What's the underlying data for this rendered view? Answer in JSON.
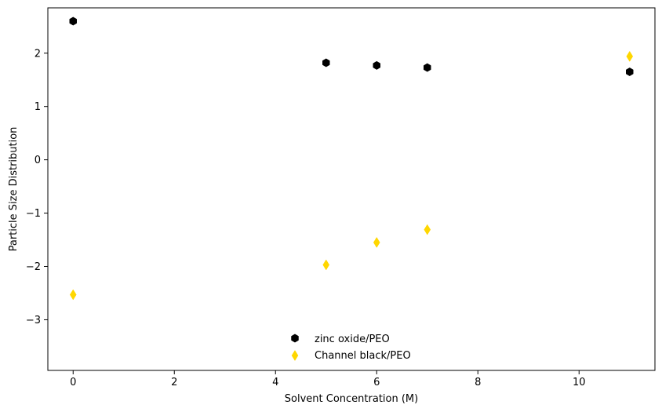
{
  "chart_data": {
    "type": "scatter",
    "title": "",
    "xlabel": "Solvent Concentration (M)",
    "ylabel": "Particle Size Distribution",
    "xlim": [
      -0.5,
      11.5
    ],
    "ylim": [
      -3.95,
      2.85
    ],
    "xticks": [
      0,
      2,
      4,
      6,
      8,
      10
    ],
    "yticks": [
      -3,
      -2,
      -1,
      0,
      1,
      2
    ],
    "grid": false,
    "legend": "lower-center",
    "series": [
      {
        "name": "zinc oxide/PEO",
        "marker": "hexagon",
        "color": "#000000",
        "x": [
          0,
          5,
          6,
          7,
          11
        ],
        "y": [
          2.6,
          1.82,
          1.77,
          1.73,
          1.65
        ]
      },
      {
        "name": "Channel black/PEO",
        "marker": "thin-diamond",
        "color": "#FFD700",
        "x": [
          0,
          5,
          6,
          7,
          11
        ],
        "y": [
          -2.53,
          -1.97,
          -1.55,
          -1.31,
          1.94
        ]
      }
    ]
  }
}
